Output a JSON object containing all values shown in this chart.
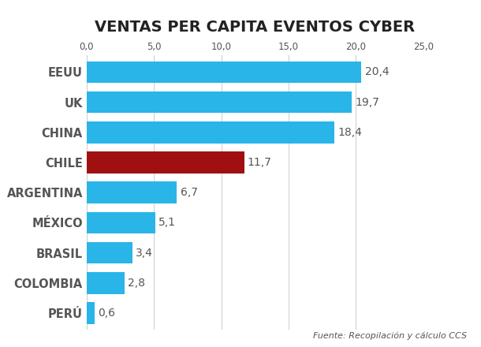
{
  "title": "VENTAS PER CAPITA EVENTOS CYBER",
  "categories": [
    "PERÚ",
    "COLOMBIA",
    "BRASIL",
    "MÉXICO",
    "ARGENTINA",
    "CHILE",
    "CHINA",
    "UK",
    "EEUU"
  ],
  "values": [
    0.6,
    2.8,
    3.4,
    5.1,
    6.7,
    11.7,
    18.4,
    19.7,
    20.4
  ],
  "xlim": [
    0,
    25
  ],
  "xticks": [
    0.0,
    5.0,
    10.0,
    15.0,
    20.0,
    25.0
  ],
  "xtick_labels": [
    "0,0",
    "5,0",
    "10,0",
    "15,0",
    "20,0",
    "25,0"
  ],
  "value_labels": [
    "0,6",
    "2,8",
    "3,4",
    "5,1",
    "6,7",
    "11,7",
    "18,4",
    "19,7",
    "20,4"
  ],
  "bar_color_cyan": "#29B5E8",
  "bar_color_red": "#A01010",
  "bar_height": 0.72,
  "title_fontsize": 14,
  "ylabel_fontsize": 10.5,
  "value_label_fontsize": 10,
  "tick_label_fontsize": 8.5,
  "source_text": "Fuente: Recopilación y cálculo CCS",
  "background_color": "#FFFFFF",
  "label_color": "#555555",
  "title_color": "#222222",
  "grid_color": "#cccccc",
  "source_fontsize": 8
}
